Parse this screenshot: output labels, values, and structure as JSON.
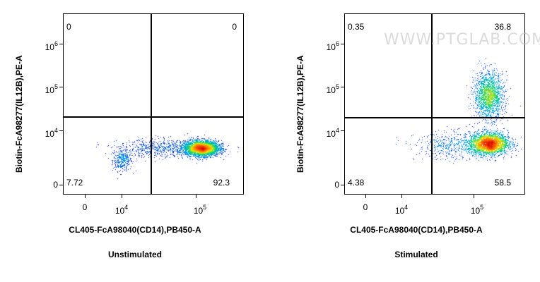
{
  "chart_data": [
    {
      "type": "scatter",
      "caption": "Unstimulated",
      "xlabel": "CL405-FcA98040(CD14),PB450-A",
      "ylabel": "Biotin-FcA98277(IL12B),PE-A",
      "x_ticks": [
        {
          "value": 0,
          "base": "0",
          "exp": ""
        },
        {
          "value": 10000,
          "base": "10",
          "exp": "4"
        },
        {
          "value": 100000,
          "base": "10",
          "exp": "5"
        }
      ],
      "y_ticks": [
        {
          "value": 0,
          "base": "0",
          "exp": ""
        },
        {
          "value": 10000,
          "base": "10",
          "exp": "4"
        },
        {
          "value": 100000,
          "base": "10",
          "exp": "5"
        },
        {
          "value": 1000000,
          "base": "10",
          "exp": "6"
        }
      ],
      "quadrants": {
        "top_left": "0",
        "top_right": "0",
        "bottom_left": "7.72",
        "bottom_right": "92.3"
      },
      "populations": [
        {
          "x_log10": 3.55,
          "y_log10": 3.55,
          "spread_x": 0.08,
          "spread_y": 0.12,
          "weight": 0.07
        },
        {
          "x_log10": 4.85,
          "y_log10": 3.8,
          "spread_x": 0.14,
          "spread_y": 0.08,
          "weight": 0.8
        },
        {
          "x_log10": 4.2,
          "y_log10": 3.8,
          "spread_x": 0.35,
          "spread_y": 0.1,
          "weight": 0.13
        }
      ]
    },
    {
      "type": "scatter",
      "caption": "Stimulated",
      "xlabel": "CL405-FcA98040(CD14),PB450-A",
      "ylabel": "Biotin-FcA98277(IL12B),PE-A",
      "x_ticks": [
        {
          "value": 0,
          "base": "0",
          "exp": ""
        },
        {
          "value": 10000,
          "base": "10",
          "exp": "4"
        },
        {
          "value": 100000,
          "base": "10",
          "exp": "5"
        }
      ],
      "y_ticks": [
        {
          "value": 0,
          "base": "0",
          "exp": ""
        },
        {
          "value": 10000,
          "base": "10",
          "exp": "4"
        },
        {
          "value": 100000,
          "base": "10",
          "exp": "5"
        },
        {
          "value": 1000000,
          "base": "10",
          "exp": "6"
        }
      ],
      "quadrants": {
        "top_left": "0.35",
        "top_right": "36.8",
        "bottom_left": "4.38",
        "bottom_right": "58.5"
      },
      "populations": [
        {
          "x_log10": 4.95,
          "y_log10": 3.9,
          "spread_x": 0.16,
          "spread_y": 0.12,
          "weight": 0.55
        },
        {
          "x_log10": 4.95,
          "y_log10": 4.95,
          "spread_x": 0.12,
          "spread_y": 0.25,
          "weight": 0.35
        },
        {
          "x_log10": 4.35,
          "y_log10": 3.85,
          "spread_x": 0.3,
          "spread_y": 0.15,
          "weight": 0.1
        }
      ]
    }
  ],
  "watermark": "WWW.PTGLAB.COM"
}
